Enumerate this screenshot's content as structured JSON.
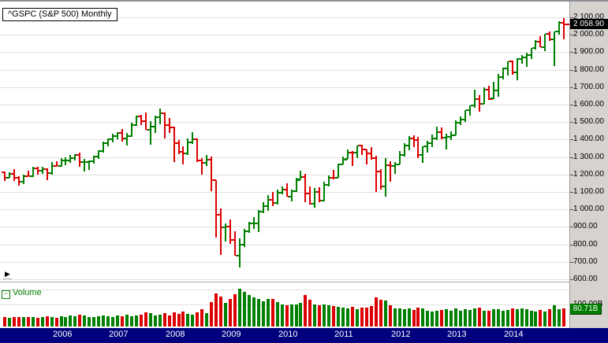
{
  "header": {
    "title": "^GSPC (S&P 500) Monthly"
  },
  "icons": {
    "expander_glyph": "▶",
    "collapse_glyph": "−"
  },
  "colors": {
    "up": "#008000",
    "down": "#dd0000",
    "grid": "#e0e0e0",
    "axis_panel_bg": "#d6d3ce",
    "date_bar_bg": "#00007e",
    "price_badge_bg": "#000000",
    "price_badge_fg": "#ffffff",
    "volume_badge_bg": "#007c00",
    "volume_label_fg": "#008000"
  },
  "price_axis": {
    "last_price_label": "2 058.90",
    "ticks": [
      {
        "value": 2100,
        "label": "2 100.00"
      },
      {
        "value": 2000,
        "label": "2 000.00"
      },
      {
        "value": 1900,
        "label": "1 900.00"
      },
      {
        "value": 1800,
        "label": "1 800.00"
      },
      {
        "value": 1700,
        "label": "1 700.00"
      },
      {
        "value": 1600,
        "label": "1 600.00"
      },
      {
        "value": 1500,
        "label": "1 500.00"
      },
      {
        "value": 1400,
        "label": "1 400.00"
      },
      {
        "value": 1300,
        "label": "1 300.00"
      },
      {
        "value": 1200,
        "label": "1 200.00"
      },
      {
        "value": 1100,
        "label": "1 100.00"
      },
      {
        "value": 1000,
        "label": "1 000.00"
      },
      {
        "value": 900,
        "label": "900.00"
      },
      {
        "value": 800,
        "label": "800.00"
      },
      {
        "value": 700,
        "label": "700.00"
      },
      {
        "value": 600,
        "label": "600.00"
      }
    ]
  },
  "volume_axis": {
    "visible_label": "100.00B",
    "last_volume_label": "80.71B"
  },
  "volume_panel": {
    "label": "Volume"
  },
  "date_axis": {
    "years": [
      {
        "label": "2006",
        "month_index": 12
      },
      {
        "label": "2007",
        "month_index": 24
      },
      {
        "label": "2008",
        "month_index": 36
      },
      {
        "label": "2009",
        "month_index": 48
      },
      {
        "label": "2010",
        "month_index": 60
      },
      {
        "label": "2011",
        "month_index": 72
      },
      {
        "label": "2012",
        "month_index": 84
      },
      {
        "label": "2013",
        "month_index": 96
      },
      {
        "label": "2014",
        "month_index": 108
      }
    ]
  },
  "chart_data": {
    "type": "ohlc-bar",
    "symbol": "^GSPC",
    "title": "^GSPC (S&P 500) Monthly",
    "timeframe": "Monthly",
    "ylim": [
      600,
      2100
    ],
    "y_grid_step": 100,
    "last_close": 2058.9,
    "last_volume_b": 80.71,
    "volume_unit": "B",
    "columns": [
      "month",
      "open",
      "high",
      "low",
      "close",
      "volume_billions"
    ],
    "rows": [
      [
        "2005-01",
        1211.92,
        1217.8,
        1163.75,
        1181.27,
        41.0
      ],
      [
        "2005-02",
        1181.27,
        1212.44,
        1180.95,
        1203.6,
        38.0
      ],
      [
        "2005-03",
        1203.6,
        1229.11,
        1163.69,
        1180.59,
        44.0
      ],
      [
        "2005-04",
        1180.59,
        1191.88,
        1136.15,
        1156.85,
        43.0
      ],
      [
        "2005-05",
        1156.85,
        1199.56,
        1146.18,
        1191.5,
        42.0
      ],
      [
        "2005-06",
        1191.5,
        1219.59,
        1188.3,
        1191.33,
        43.0
      ],
      [
        "2005-07",
        1191.33,
        1245.04,
        1183.55,
        1234.18,
        44.0
      ],
      [
        "2005-08",
        1234.18,
        1245.86,
        1201.07,
        1220.33,
        40.0
      ],
      [
        "2005-09",
        1220.33,
        1243.13,
        1205.35,
        1228.81,
        43.0
      ],
      [
        "2005-10",
        1228.81,
        1233.34,
        1168.2,
        1207.01,
        46.0
      ],
      [
        "2005-11",
        1207.01,
        1270.64,
        1201.07,
        1249.48,
        44.0
      ],
      [
        "2005-12",
        1249.48,
        1275.8,
        1246.59,
        1248.29,
        40.0
      ],
      [
        "2006-01",
        1248.29,
        1294.9,
        1245.74,
        1280.08,
        47.0
      ],
      [
        "2006-02",
        1280.08,
        1297.57,
        1253.61,
        1280.66,
        44.0
      ],
      [
        "2006-03",
        1280.66,
        1310.88,
        1268.42,
        1294.87,
        50.0
      ],
      [
        "2006-04",
        1294.87,
        1318.16,
        1280.74,
        1310.61,
        45.0
      ],
      [
        "2006-05",
        1310.61,
        1326.7,
        1245.34,
        1270.09,
        53.0
      ],
      [
        "2006-06",
        1270.09,
        1290.78,
        1219.29,
        1270.2,
        51.0
      ],
      [
        "2006-07",
        1270.2,
        1280.42,
        1224.54,
        1276.66,
        44.0
      ],
      [
        "2006-08",
        1276.66,
        1306.74,
        1261.3,
        1303.82,
        43.0
      ],
      [
        "2006-09",
        1303.82,
        1340.28,
        1290.93,
        1335.85,
        45.0
      ],
      [
        "2006-10",
        1335.85,
        1389.45,
        1327.1,
        1377.94,
        48.0
      ],
      [
        "2006-11",
        1377.94,
        1407.89,
        1360.98,
        1400.63,
        46.0
      ],
      [
        "2006-12",
        1400.63,
        1431.81,
        1385.93,
        1418.3,
        43.0
      ],
      [
        "2007-01",
        1418.3,
        1441.61,
        1403.97,
        1438.24,
        50.0
      ],
      [
        "2007-02",
        1438.24,
        1461.57,
        1389.42,
        1406.82,
        45.0
      ],
      [
        "2007-03",
        1406.82,
        1438.89,
        1363.98,
        1420.86,
        52.0
      ],
      [
        "2007-04",
        1420.86,
        1498.02,
        1416.37,
        1482.37,
        47.0
      ],
      [
        "2007-05",
        1482.37,
        1535.56,
        1476.7,
        1530.62,
        51.0
      ],
      [
        "2007-06",
        1530.62,
        1540.56,
        1484.18,
        1503.35,
        54.0
      ],
      [
        "2007-07",
        1503.35,
        1555.9,
        1454.25,
        1455.27,
        64.0
      ],
      [
        "2007-08",
        1455.27,
        1503.89,
        1370.6,
        1473.99,
        60.0
      ],
      [
        "2007-09",
        1473.99,
        1538.74,
        1439.29,
        1526.75,
        50.0
      ],
      [
        "2007-10",
        1526.75,
        1576.09,
        1489.56,
        1549.38,
        53.0
      ],
      [
        "2007-11",
        1549.38,
        1552.76,
        1406.1,
        1481.14,
        61.0
      ],
      [
        "2007-12",
        1481.14,
        1523.57,
        1435.65,
        1468.36,
        50.0
      ],
      [
        "2008-01",
        1468.36,
        1471.77,
        1270.05,
        1378.55,
        64.0
      ],
      [
        "2008-02",
        1378.55,
        1396.02,
        1316.75,
        1330.63,
        58.0
      ],
      [
        "2008-03",
        1330.63,
        1359.68,
        1256.98,
        1322.7,
        66.0
      ],
      [
        "2008-04",
        1322.7,
        1404.57,
        1312.81,
        1385.59,
        57.0
      ],
      [
        "2008-05",
        1385.59,
        1440.24,
        1373.07,
        1400.38,
        54.0
      ],
      [
        "2008-06",
        1400.38,
        1406.32,
        1272.0,
        1280.0,
        62.0
      ],
      [
        "2008-07",
        1280.0,
        1292.17,
        1200.44,
        1267.38,
        78.0
      ],
      [
        "2008-08",
        1267.38,
        1313.15,
        1247.45,
        1282.83,
        60.0
      ],
      [
        "2008-09",
        1282.83,
        1303.04,
        1106.42,
        1166.36,
        110.0
      ],
      [
        "2008-10",
        1166.36,
        1167.03,
        839.8,
        968.75,
        150.0
      ],
      [
        "2008-11",
        968.75,
        1007.51,
        741.02,
        896.24,
        135.0
      ],
      [
        "2008-12",
        896.24,
        918.85,
        815.69,
        903.25,
        105.0
      ],
      [
        "2009-01",
        903.25,
        943.85,
        804.3,
        825.88,
        125.0
      ],
      [
        "2009-02",
        825.88,
        875.01,
        734.52,
        735.09,
        145.0
      ],
      [
        "2009-03",
        735.09,
        832.98,
        666.79,
        797.87,
        170.0
      ],
      [
        "2009-04",
        797.87,
        888.7,
        783.32,
        872.81,
        155.0
      ],
      [
        "2009-05",
        872.81,
        930.17,
        866.1,
        919.14,
        140.0
      ],
      [
        "2009-06",
        919.14,
        956.23,
        888.86,
        919.32,
        130.0
      ],
      [
        "2009-07",
        919.32,
        996.68,
        869.32,
        987.48,
        125.0
      ],
      [
        "2009-08",
        987.48,
        1039.47,
        978.51,
        1020.62,
        112.0
      ],
      [
        "2009-09",
        1020.62,
        1080.15,
        991.97,
        1057.08,
        122.0
      ],
      [
        "2009-10",
        1057.08,
        1101.36,
        1019.95,
        1036.19,
        125.0
      ],
      [
        "2009-11",
        1036.19,
        1113.69,
        1029.38,
        1095.63,
        108.0
      ],
      [
        "2009-12",
        1095.63,
        1130.38,
        1085.89,
        1115.1,
        100.0
      ],
      [
        "2010-01",
        1115.1,
        1150.45,
        1071.59,
        1073.87,
        95.0
      ],
      [
        "2010-02",
        1073.87,
        1112.42,
        1044.5,
        1104.49,
        98.0
      ],
      [
        "2010-03",
        1104.49,
        1180.69,
        1101.5,
        1169.43,
        100.0
      ],
      [
        "2010-04",
        1171.23,
        1219.8,
        1170.69,
        1186.69,
        105.0
      ],
      [
        "2010-05",
        1186.69,
        1205.13,
        1040.78,
        1089.41,
        140.0
      ],
      [
        "2010-06",
        1089.41,
        1131.23,
        1028.33,
        1030.71,
        120.0
      ],
      [
        "2010-07",
        1030.71,
        1120.95,
        1010.91,
        1101.6,
        100.0
      ],
      [
        "2010-08",
        1101.6,
        1129.24,
        1039.7,
        1049.33,
        95.0
      ],
      [
        "2010-09",
        1049.72,
        1157.16,
        1046.88,
        1141.2,
        98.0
      ],
      [
        "2010-10",
        1141.2,
        1196.14,
        1131.87,
        1183.26,
        95.0
      ],
      [
        "2010-11",
        1183.26,
        1227.08,
        1173.0,
        1180.55,
        92.0
      ],
      [
        "2010-12",
        1180.55,
        1262.6,
        1180.55,
        1257.64,
        88.0
      ],
      [
        "2011-01",
        1257.64,
        1302.67,
        1257.62,
        1286.12,
        85.0
      ],
      [
        "2011-02",
        1289.14,
        1344.07,
        1289.14,
        1327.22,
        82.0
      ],
      [
        "2011-03",
        1327.22,
        1332.28,
        1249.05,
        1325.83,
        90.0
      ],
      [
        "2011-04",
        1325.83,
        1364.56,
        1294.7,
        1363.61,
        78.0
      ],
      [
        "2011-05",
        1363.61,
        1370.58,
        1311.8,
        1345.2,
        84.0
      ],
      [
        "2011-06",
        1345.2,
        1345.2,
        1258.07,
        1320.64,
        86.0
      ],
      [
        "2011-07",
        1320.64,
        1356.48,
        1282.86,
        1292.28,
        92.0
      ],
      [
        "2011-08",
        1292.28,
        1307.38,
        1101.54,
        1218.89,
        130.0
      ],
      [
        "2011-09",
        1218.89,
        1229.29,
        1114.22,
        1131.42,
        120.0
      ],
      [
        "2011-10",
        1131.42,
        1292.66,
        1074.77,
        1253.3,
        115.0
      ],
      [
        "2011-11",
        1253.3,
        1277.55,
        1158.66,
        1246.96,
        95.0
      ],
      [
        "2011-12",
        1246.96,
        1269.37,
        1202.37,
        1257.6,
        82.0
      ],
      [
        "2012-01",
        1258.86,
        1333.47,
        1258.86,
        1312.41,
        80.0
      ],
      [
        "2012-02",
        1312.41,
        1378.04,
        1300.49,
        1365.68,
        78.0
      ],
      [
        "2012-03",
        1365.68,
        1419.15,
        1340.03,
        1408.47,
        80.0
      ],
      [
        "2012-04",
        1408.47,
        1422.38,
        1357.38,
        1397.91,
        74.0
      ],
      [
        "2012-05",
        1397.91,
        1415.32,
        1291.98,
        1310.33,
        85.0
      ],
      [
        "2012-06",
        1310.33,
        1363.46,
        1266.74,
        1362.16,
        80.0
      ],
      [
        "2012-07",
        1362.16,
        1391.74,
        1325.41,
        1379.32,
        70.0
      ],
      [
        "2012-08",
        1379.32,
        1426.68,
        1354.65,
        1406.58,
        66.0
      ],
      [
        "2012-09",
        1406.58,
        1474.51,
        1396.56,
        1440.67,
        70.0
      ],
      [
        "2012-10",
        1440.67,
        1470.96,
        1403.28,
        1412.16,
        74.0
      ],
      [
        "2012-11",
        1412.16,
        1434.27,
        1343.35,
        1416.18,
        76.0
      ],
      [
        "2012-12",
        1416.18,
        1448.0,
        1398.11,
        1426.19,
        72.0
      ],
      [
        "2013-01",
        1426.19,
        1509.94,
        1426.19,
        1498.11,
        82.0
      ],
      [
        "2013-02",
        1498.11,
        1530.94,
        1485.01,
        1514.68,
        72.0
      ],
      [
        "2013-03",
        1514.68,
        1570.28,
        1501.48,
        1569.19,
        76.0
      ],
      [
        "2013-04",
        1569.19,
        1597.57,
        1536.03,
        1597.57,
        74.0
      ],
      [
        "2013-05",
        1597.57,
        1687.18,
        1581.28,
        1630.74,
        80.0
      ],
      [
        "2013-06",
        1630.74,
        1654.19,
        1560.33,
        1606.28,
        85.0
      ],
      [
        "2013-07",
        1606.28,
        1698.78,
        1604.57,
        1685.73,
        72.0
      ],
      [
        "2013-08",
        1685.73,
        1709.67,
        1627.47,
        1632.97,
        70.0
      ],
      [
        "2013-09",
        1635.95,
        1729.86,
        1633.41,
        1681.55,
        76.0
      ],
      [
        "2013-10",
        1681.55,
        1775.22,
        1646.47,
        1756.54,
        78.0
      ],
      [
        "2013-11",
        1756.54,
        1813.55,
        1746.2,
        1805.81,
        70.0
      ],
      [
        "2013-12",
        1805.81,
        1849.44,
        1767.99,
        1848.36,
        74.0
      ],
      [
        "2014-01",
        1848.36,
        1850.84,
        1770.45,
        1782.59,
        82.0
      ],
      [
        "2014-02",
        1782.59,
        1867.92,
        1737.92,
        1859.45,
        76.0
      ],
      [
        "2014-03",
        1859.45,
        1883.97,
        1834.44,
        1872.34,
        80.0
      ],
      [
        "2014-04",
        1872.34,
        1897.28,
        1814.36,
        1883.95,
        78.0
      ],
      [
        "2014-05",
        1883.95,
        1924.03,
        1859.79,
        1923.57,
        70.0
      ],
      [
        "2014-06",
        1923.57,
        1968.17,
        1915.98,
        1960.23,
        66.0
      ],
      [
        "2014-07",
        1960.23,
        1991.39,
        1930.67,
        1930.67,
        74.0
      ],
      [
        "2014-08",
        1930.67,
        2005.04,
        1904.78,
        2003.37,
        68.0
      ],
      [
        "2014-09",
        2003.37,
        2019.26,
        1964.04,
        1972.29,
        76.0
      ],
      [
        "2014-10",
        1972.29,
        2018.19,
        1820.66,
        2018.05,
        95.0
      ],
      [
        "2014-11",
        2018.05,
        2075.76,
        2001.01,
        2067.56,
        78.0
      ],
      [
        "2014-12",
        2067.56,
        2093.55,
        1972.56,
        2058.9,
        80.71
      ]
    ]
  }
}
